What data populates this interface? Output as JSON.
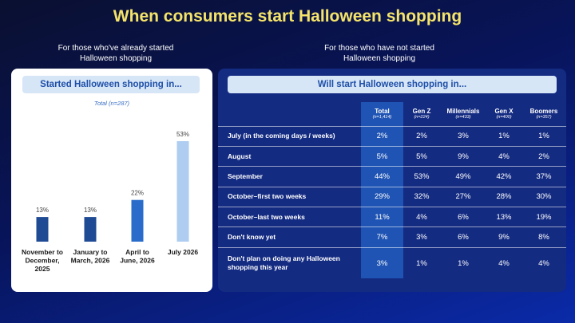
{
  "title": "When consumers start Halloween shopping",
  "left": {
    "subhead": "For those who've already started\nHalloween shopping",
    "header": "Started Halloween shopping in...",
    "total_label": "Total (n=287)"
  },
  "right": {
    "subhead": "For those who have not started\nHalloween shopping",
    "header": "Will start Halloween shopping in...",
    "columns": [
      {
        "name": "Total",
        "n": "(n=1,414)"
      },
      {
        "name": "Gen Z",
        "n": "(n=224)"
      },
      {
        "name": "Millennials",
        "n": "(n=433)"
      },
      {
        "name": "Gen X",
        "n": "(n=400)"
      },
      {
        "name": "Boomers",
        "n": "(n=357)"
      }
    ],
    "rows": [
      {
        "label": "July (in the coming days / weeks)",
        "values": [
          "2%",
          "2%",
          "3%",
          "1%",
          "1%"
        ]
      },
      {
        "label": "August",
        "values": [
          "5%",
          "5%",
          "9%",
          "4%",
          "2%"
        ]
      },
      {
        "label": "September",
        "values": [
          "44%",
          "53%",
          "49%",
          "42%",
          "37%"
        ]
      },
      {
        "label": "October–first two weeks",
        "values": [
          "29%",
          "32%",
          "27%",
          "28%",
          "30%"
        ]
      },
      {
        "label": "October–last two weeks",
        "values": [
          "11%",
          "4%",
          "6%",
          "13%",
          "19%"
        ]
      },
      {
        "label": "Don't know yet",
        "values": [
          "7%",
          "3%",
          "6%",
          "9%",
          "8%"
        ]
      },
      {
        "label": "Don't plan on doing any Halloween shopping this year",
        "values": [
          "3%",
          "1%",
          "1%",
          "4%",
          "4%"
        ]
      }
    ]
  },
  "colors": {
    "title": "#f5e46a",
    "header_bg": "#d6e6f7",
    "header_text": "#1f4fa8",
    "bar_dark": "#1f4a94",
    "bar_mid": "#2a6cc9",
    "bar_light": "#aecdf0",
    "table_bg": "#142b82",
    "total_col": "#1f54b4"
  },
  "chart_data": [
    {
      "type": "bar",
      "title": "Started Halloween shopping in...",
      "subtitle": "Total (n=287)",
      "categories": [
        "November to December, 2025",
        "January to March, 2026",
        "April to June, 2026",
        "July 2026"
      ],
      "values": [
        13,
        13,
        22,
        53
      ],
      "labels": [
        "13%",
        "13%",
        "22%",
        "53%"
      ],
      "ylim": [
        0,
        53
      ]
    },
    {
      "type": "table",
      "title": "Will start Halloween shopping in...",
      "columns": [
        "Total",
        "Gen Z",
        "Millennials",
        "Gen X",
        "Boomers"
      ],
      "rows": [
        "July (in the coming days / weeks)",
        "August",
        "September",
        "October–first two weeks",
        "October–last two weeks",
        "Don't know yet",
        "Don't plan on doing any Halloween shopping this year"
      ],
      "values": [
        [
          2,
          2,
          3,
          1,
          1
        ],
        [
          5,
          5,
          9,
          4,
          2
        ],
        [
          44,
          53,
          49,
          42,
          37
        ],
        [
          29,
          32,
          27,
          28,
          30
        ],
        [
          11,
          4,
          6,
          13,
          19
        ],
        [
          7,
          3,
          6,
          9,
          8
        ],
        [
          3,
          1,
          1,
          4,
          4
        ]
      ]
    }
  ]
}
